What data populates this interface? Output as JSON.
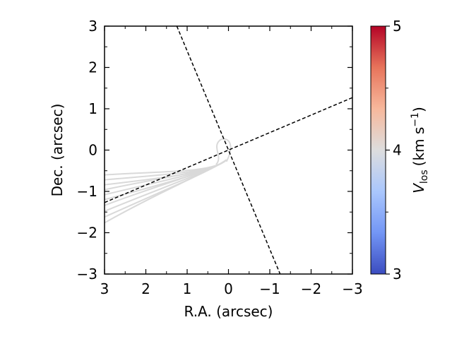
{
  "chart_data": {
    "type": "line",
    "xlabel": "R.A. (arcsec)",
    "ylabel": "Dec. (arcsec)",
    "xlim": [
      3,
      -3
    ],
    "ylim": [
      -3,
      3
    ],
    "x_ticks": [
      3,
      2,
      1,
      0,
      -1,
      -2,
      -3
    ],
    "y_ticks": [
      3,
      2,
      1,
      0,
      -1,
      -2,
      -3
    ],
    "x_tick_labels": [
      "3",
      "2",
      "1",
      "0",
      "−1",
      "−2",
      "−3"
    ],
    "y_tick_labels": [
      "3",
      "2",
      "1",
      "0",
      "−1",
      "−2",
      "−3"
    ],
    "grid": false,
    "reference_lines": [
      {
        "style": "dashed",
        "color": "#000000",
        "points": [
          [
            1.25,
            3
          ],
          [
            -1.25,
            -3
          ]
        ]
      },
      {
        "style": "dashed",
        "color": "#000000",
        "points": [
          [
            3,
            -1.27
          ],
          [
            -3,
            1.27
          ]
        ]
      }
    ],
    "streamlines": {
      "color": "#d9d9d9",
      "start_x": 3,
      "start_y": [
        -0.6,
        -0.72,
        -0.84,
        -0.96,
        -1.08,
        -1.2,
        -1.34,
        -1.48,
        -1.62,
        -1.76
      ],
      "end": [
        0.05,
        -0.1
      ]
    },
    "colorbar": {
      "label": "V_los (km s^-1)",
      "label_parts": {
        "symbol": "V",
        "subscript": "los",
        "unit": "(km s",
        "exponent": "−1",
        "close": ")"
      },
      "min": 3,
      "max": 5,
      "ticks": [
        3,
        4,
        5
      ],
      "tick_labels": [
        "3",
        "4",
        "5"
      ],
      "cmap": "coolwarm",
      "cmap_colors": [
        "#3b4cc0",
        "#7396f5",
        "#aac7fd",
        "#dddddd",
        "#f7b89c",
        "#e7745b",
        "#b40426"
      ]
    }
  }
}
